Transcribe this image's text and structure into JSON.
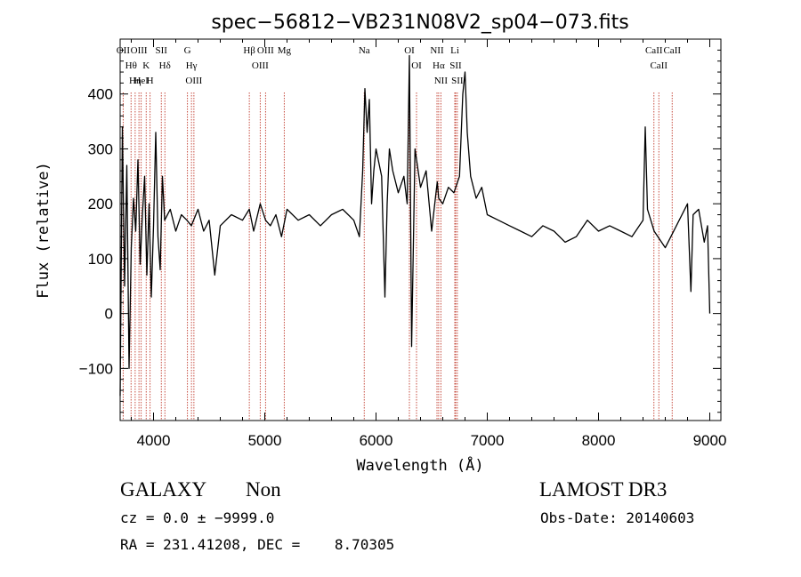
{
  "chart_data": {
    "type": "line",
    "title": "spec−56812−VB231N08V2_sp04−073.fits",
    "xlabel": "Wavelength (Å)",
    "ylabel": "Flux (relative)",
    "xlim": [
      3700,
      9100
    ],
    "ylim": [
      -195,
      500
    ],
    "xticks": [
      4000,
      5000,
      6000,
      7000,
      8000,
      9000
    ],
    "xtick_labels": [
      "4000",
      "5000",
      "6000",
      "7000",
      "8000",
      "9000"
    ],
    "yticks": [
      -100,
      0,
      100,
      200,
      300,
      400
    ],
    "ytick_labels": [
      "−100",
      "0",
      "100",
      "200",
      "300",
      "400"
    ],
    "grid": false,
    "legend": "none",
    "line_color": "#000000",
    "marker_line_color": "#c0392b",
    "spectrum": {
      "name": "",
      "x": [
        3700,
        3720,
        3740,
        3760,
        3780,
        3800,
        3820,
        3840,
        3860,
        3880,
        3900,
        3920,
        3940,
        3960,
        3980,
        4000,
        4020,
        4040,
        4060,
        4080,
        4100,
        4150,
        4200,
        4250,
        4300,
        4340,
        4400,
        4450,
        4500,
        4550,
        4600,
        4700,
        4800,
        4861,
        4900,
        4959,
        5007,
        5050,
        5100,
        5150,
        5200,
        5300,
        5400,
        5500,
        5600,
        5700,
        5800,
        5850,
        5880,
        5900,
        5920,
        5940,
        5960,
        5980,
        6000,
        6020,
        6050,
        6080,
        6100,
        6120,
        6150,
        6200,
        6250,
        6280,
        6300,
        6320,
        6350,
        6400,
        6450,
        6500,
        6550,
        6563,
        6600,
        6650,
        6700,
        6750,
        6780,
        6800,
        6820,
        6850,
        6900,
        6950,
        7000,
        7100,
        7200,
        7300,
        7400,
        7500,
        7600,
        7700,
        7800,
        7900,
        8000,
        8100,
        8200,
        8300,
        8400,
        8420,
        8440,
        8500,
        8600,
        8700,
        8800,
        8830,
        8850,
        8900,
        8950,
        8980,
        9000
      ],
      "y": [
        -150,
        340,
        50,
        270,
        -100,
        120,
        210,
        150,
        280,
        90,
        180,
        250,
        70,
        200,
        30,
        160,
        330,
        140,
        80,
        250,
        170,
        190,
        150,
        180,
        170,
        160,
        190,
        150,
        170,
        70,
        160,
        180,
        170,
        190,
        150,
        200,
        170,
        160,
        180,
        140,
        190,
        170,
        180,
        160,
        180,
        190,
        170,
        140,
        260,
        410,
        330,
        390,
        200,
        260,
        300,
        280,
        250,
        30,
        200,
        300,
        260,
        220,
        250,
        200,
        470,
        -60,
        300,
        230,
        260,
        150,
        240,
        210,
        200,
        230,
        220,
        250,
        400,
        440,
        330,
        250,
        210,
        230,
        180,
        170,
        160,
        150,
        140,
        160,
        150,
        130,
        140,
        170,
        150,
        160,
        150,
        140,
        170,
        340,
        190,
        150,
        120,
        160,
        200,
        40,
        180,
        190,
        130,
        160,
        0
      ]
    },
    "markers": [
      {
        "label": "OII",
        "x": 3727
      },
      {
        "label": "Hθ",
        "x": 3798
      },
      {
        "label": "Hη",
        "x": 3835
      },
      {
        "label": "OIII",
        "x": 3869
      },
      {
        "label": "HeI",
        "x": 3889
      },
      {
        "label": "K",
        "x": 3934
      },
      {
        "label": "H",
        "x": 3969
      },
      {
        "label": "SII",
        "x": 4070
      },
      {
        "label": "Hδ",
        "x": 4102
      },
      {
        "label": "G",
        "x": 4305
      },
      {
        "label": "Hγ",
        "x": 4341
      },
      {
        "label": "OIII",
        "x": 4363
      },
      {
        "label": "Hβ",
        "x": 4861
      },
      {
        "label": "OIII",
        "x": 4959
      },
      {
        "label": "OIII",
        "x": 5007
      },
      {
        "label": "Mg",
        "x": 5175
      },
      {
        "label": "Na",
        "x": 5894
      },
      {
        "label": "OI",
        "x": 6300
      },
      {
        "label": "OI",
        "x": 6364
      },
      {
        "label": "NII",
        "x": 6548
      },
      {
        "label": "Hα",
        "x": 6563
      },
      {
        "label": "NII",
        "x": 6583
      },
      {
        "label": "Li",
        "x": 6708
      },
      {
        "label": "SII",
        "x": 6716
      },
      {
        "label": "SII",
        "x": 6731
      },
      {
        "label": "CaII",
        "x": 8498
      },
      {
        "label": "CaII",
        "x": 8542
      },
      {
        "label": "CaII",
        "x": 8662
      }
    ]
  },
  "info": {
    "class_label": "GALAXY",
    "subclass_label": "Non",
    "survey": "LAMOST DR3",
    "cz_line": "cz = 0.0 ± −9999.0",
    "obs_date": "Obs-Date: 20140603",
    "radec_line": "RA = 231.41208, DEC =    8.70305"
  }
}
